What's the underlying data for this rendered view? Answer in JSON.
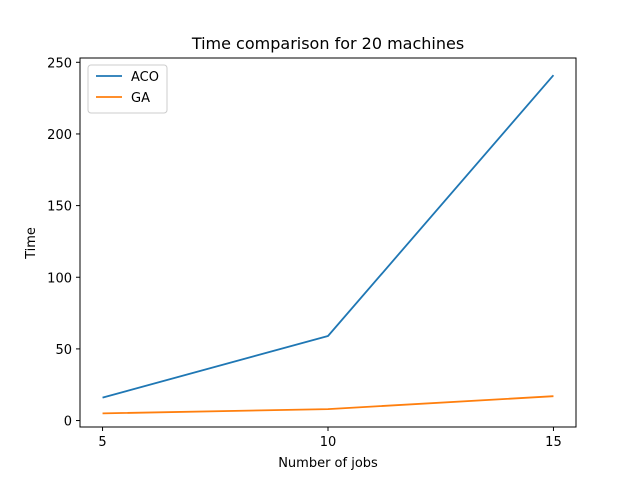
{
  "chart_data": {
    "type": "line",
    "title": "Time comparison for 20 machines",
    "xlabel": "Number of jobs",
    "ylabel": "Time",
    "x": [
      5,
      10,
      15
    ],
    "xticks": [
      5,
      10,
      15
    ],
    "yticks": [
      0,
      50,
      100,
      150,
      200,
      250
    ],
    "xlim": [
      4.5,
      15.5
    ],
    "ylim": [
      -4.5,
      253
    ],
    "grid": false,
    "legend_position": "top-left",
    "series": [
      {
        "name": "ACO",
        "color": "#1f77b4",
        "values": [
          16,
          59,
          241
        ]
      },
      {
        "name": "GA",
        "color": "#ff7f0e",
        "values": [
          5,
          8,
          17
        ]
      }
    ]
  }
}
